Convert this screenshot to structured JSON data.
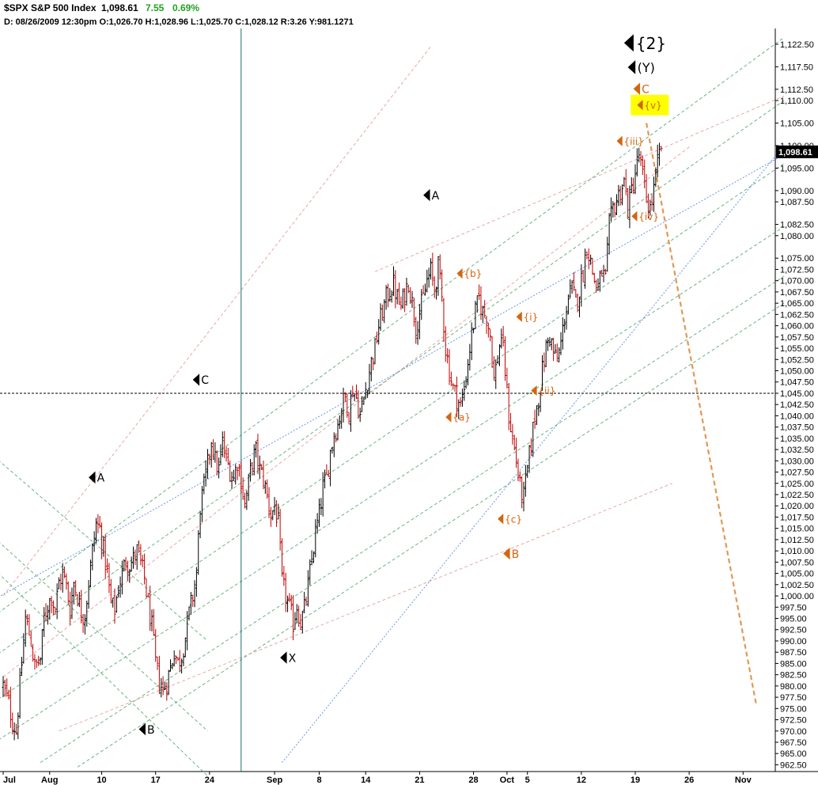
{
  "header": {
    "symbol": "$SPX S&P 500 Index",
    "last": "1,098.61",
    "change": "7.55",
    "change_pct": "0.69%",
    "ohlc_line": "D: 08/26/2009 12:30pm O:1,026.70 H:1,028.96 L:1,025.70 C:1,028.12 R:3.26 Y:981.1271"
  },
  "colors": {
    "background": "#ffffff",
    "up_bar": "#000000",
    "down_bar": "#c00000",
    "green_channel": "#3a9a5a",
    "pink_channel": "#e08a8a",
    "blue_line": "#3b6fe0",
    "orange_projection": "#e0934a",
    "label_orange": "#d4650f",
    "highlight": "#ffff00",
    "last_price_tag": "#000000",
    "vertical_marker": "#1a6e6e"
  },
  "chart_data": {
    "type": "ohlc",
    "title": "$SPX S&P 500 Index",
    "y_axis_position": "right",
    "ylim": [
      961,
      1126
    ],
    "grid": false,
    "y_ticks": [
      1122.5,
      1117.5,
      1112.5,
      1110.0,
      1105.0,
      1100.0,
      1095.0,
      1090.0,
      1087.5,
      1082.5,
      1080.0,
      1075.0,
      1072.5,
      1070.0,
      1067.5,
      1065.0,
      1062.5,
      1060.0,
      1057.5,
      1055.0,
      1052.5,
      1050.0,
      1047.5,
      1045.0,
      1042.5,
      1040.0,
      1037.5,
      1035.0,
      1032.5,
      1030.0,
      1027.5,
      1025.0,
      1022.5,
      1020.0,
      1017.5,
      1015.0,
      1012.5,
      1010.0,
      1007.5,
      1005.0,
      1002.5,
      1000.0,
      997.5,
      995.0,
      992.5,
      990.0,
      987.5,
      985.0,
      982.5,
      980.0,
      977.5,
      975.0,
      972.5,
      970.0,
      967.5,
      965.0,
      962.5
    ],
    "y_tick_labels": [
      "1,122.50",
      "1,117.50",
      "1,112.50",
      "1,110.00",
      "1,105.00",
      "1,100.00",
      "1,095.00",
      "1,090.00",
      "1,087.50",
      "1,082.50",
      "1,080.00",
      "1,075.00",
      "1,072.50",
      "1,070.00",
      "1,067.50",
      "1,065.00",
      "1,062.50",
      "1,060.00",
      "1,057.50",
      "1,055.00",
      "1,052.50",
      "1,050.00",
      "1,047.50",
      "1,045.00",
      "1,042.50",
      "1,040.00",
      "1,037.50",
      "1,035.00",
      "1,032.50",
      "1,030.00",
      "1,027.50",
      "1,025.00",
      "1,022.50",
      "1,020.00",
      "1,017.50",
      "1,015.00",
      "1,012.50",
      "1,010.00",
      "1,007.50",
      "1,005.00",
      "1,002.50",
      "1,000.00",
      "997.50",
      "995.00",
      "992.50",
      "990.00",
      "987.50",
      "985.00",
      "982.50",
      "980.00",
      "977.50",
      "975.00",
      "972.50",
      "970.00",
      "967.50",
      "965.00",
      "962.50"
    ],
    "x_ticks": [
      {
        "t": 0,
        "label": "Jul"
      },
      {
        "t": 25,
        "label": "Aug"
      },
      {
        "t": 53,
        "label": "10"
      },
      {
        "t": 82,
        "label": "17"
      },
      {
        "t": 111,
        "label": "24"
      },
      {
        "t": 146,
        "label": "Sep"
      },
      {
        "t": 170,
        "label": "8"
      },
      {
        "t": 195,
        "label": "14"
      },
      {
        "t": 224,
        "label": "21"
      },
      {
        "t": 253,
        "label": "28"
      },
      {
        "t": 271,
        "label": "Oct"
      },
      {
        "t": 282,
        "label": "5"
      },
      {
        "t": 311,
        "label": "12"
      },
      {
        "t": 340,
        "label": "19"
      },
      {
        "t": 369,
        "label": "26"
      },
      {
        "t": 398,
        "label": "Nov"
      }
    ],
    "last_price": 1098.61,
    "last_price_label": "1,098.61",
    "horizontal_line": 1045.0,
    "vertical_marker_t": 128,
    "price_path": [
      [
        0,
        980
      ],
      [
        3,
        976
      ],
      [
        5,
        972
      ],
      [
        7,
        970
      ],
      [
        10,
        985
      ],
      [
        12,
        995
      ],
      [
        15,
        990
      ],
      [
        17,
        984
      ],
      [
        20,
        986
      ],
      [
        22,
        995
      ],
      [
        24,
        998
      ],
      [
        26,
        1000
      ],
      [
        28,
        997
      ],
      [
        30,
        1003
      ],
      [
        32,
        1005
      ],
      [
        34,
        1002
      ],
      [
        36,
        997
      ],
      [
        38,
        1003
      ],
      [
        40,
        1000
      ],
      [
        42,
        996
      ],
      [
        44,
        996
      ],
      [
        46,
        1003
      ],
      [
        48,
        1010
      ],
      [
        50,
        1016
      ],
      [
        52,
        1015
      ],
      [
        54,
        1010
      ],
      [
        56,
        1005
      ],
      [
        58,
        998
      ],
      [
        60,
        997
      ],
      [
        62,
        1002
      ],
      [
        64,
        1005
      ],
      [
        66,
        1008
      ],
      [
        68,
        1007
      ],
      [
        70,
        1008
      ],
      [
        72,
        1010
      ],
      [
        74,
        1007
      ],
      [
        76,
        1004
      ],
      [
        78,
        998
      ],
      [
        80,
        993
      ],
      [
        82,
        985
      ],
      [
        84,
        981
      ],
      [
        86,
        979
      ],
      [
        88,
        981
      ],
      [
        90,
        984
      ],
      [
        92,
        988
      ],
      [
        94,
        985
      ],
      [
        96,
        987
      ],
      [
        98,
        991
      ],
      [
        100,
        996
      ],
      [
        102,
        1000
      ],
      [
        104,
        1005
      ],
      [
        106,
        1020
      ],
      [
        108,
        1024
      ],
      [
        110,
        1029
      ],
      [
        112,
        1035
      ],
      [
        114,
        1030
      ],
      [
        116,
        1028
      ],
      [
        118,
        1034
      ],
      [
        120,
        1030
      ],
      [
        122,
        1028
      ],
      [
        124,
        1026
      ],
      [
        126,
        1030
      ],
      [
        128,
        1026
      ],
      [
        130,
        1020
      ],
      [
        132,
        1025
      ],
      [
        134,
        1030
      ],
      [
        136,
        1032
      ],
      [
        138,
        1028
      ],
      [
        140,
        1026
      ],
      [
        142,
        1022
      ],
      [
        144,
        1018
      ],
      [
        146,
        1020
      ],
      [
        148,
        1016
      ],
      [
        150,
        1003
      ],
      [
        152,
        1000
      ],
      [
        154,
        997
      ],
      [
        156,
        994
      ],
      [
        158,
        998
      ],
      [
        160,
        994
      ],
      [
        162,
        997
      ],
      [
        164,
        1002
      ],
      [
        166,
        1008
      ],
      [
        168,
        1014
      ],
      [
        170,
        1018
      ],
      [
        172,
        1024
      ],
      [
        174,
        1026
      ],
      [
        176,
        1032
      ],
      [
        178,
        1036
      ],
      [
        180,
        1038
      ],
      [
        182,
        1042
      ],
      [
        184,
        1044
      ],
      [
        186,
        1041
      ],
      [
        188,
        1046
      ],
      [
        190,
        1044
      ],
      [
        192,
        1040
      ],
      [
        194,
        1044
      ],
      [
        196,
        1048
      ],
      [
        198,
        1052
      ],
      [
        200,
        1055
      ],
      [
        202,
        1060
      ],
      [
        204,
        1063
      ],
      [
        206,
        1066
      ],
      [
        208,
        1068
      ],
      [
        210,
        1069
      ],
      [
        212,
        1066
      ],
      [
        214,
        1064
      ],
      [
        216,
        1067
      ],
      [
        218,
        1070
      ],
      [
        220,
        1065
      ],
      [
        222,
        1060
      ],
      [
        224,
        1063
      ],
      [
        226,
        1066
      ],
      [
        228,
        1070
      ],
      [
        230,
        1072
      ],
      [
        232,
        1068
      ],
      [
        234,
        1073
      ],
      [
        236,
        1066
      ],
      [
        238,
        1055
      ],
      [
        240,
        1050
      ],
      [
        242,
        1046
      ],
      [
        244,
        1044
      ],
      [
        246,
        1042
      ],
      [
        248,
        1046
      ],
      [
        250,
        1052
      ],
      [
        252,
        1058
      ],
      [
        254,
        1063
      ],
      [
        256,
        1066
      ],
      [
        258,
        1063
      ],
      [
        260,
        1062
      ],
      [
        262,
        1058
      ],
      [
        264,
        1048
      ],
      [
        266,
        1053
      ],
      [
        268,
        1058
      ],
      [
        270,
        1050
      ],
      [
        272,
        1040
      ],
      [
        274,
        1035
      ],
      [
        276,
        1030
      ],
      [
        278,
        1024
      ],
      [
        280,
        1022
      ],
      [
        282,
        1028
      ],
      [
        284,
        1034
      ],
      [
        286,
        1040
      ],
      [
        288,
        1044
      ],
      [
        290,
        1050
      ],
      [
        292,
        1055
      ],
      [
        294,
        1058
      ],
      [
        296,
        1054
      ],
      [
        298,
        1052
      ],
      [
        300,
        1056
      ],
      [
        302,
        1062
      ],
      [
        304,
        1066
      ],
      [
        306,
        1068
      ],
      [
        308,
        1065
      ],
      [
        310,
        1068
      ],
      [
        312,
        1072
      ],
      [
        314,
        1078
      ],
      [
        316,
        1074
      ],
      [
        318,
        1070
      ],
      [
        320,
        1068
      ],
      [
        322,
        1072
      ],
      [
        324,
        1070
      ],
      [
        326,
        1082
      ],
      [
        328,
        1086
      ],
      [
        330,
        1088
      ],
      [
        332,
        1090
      ],
      [
        334,
        1092
      ],
      [
        336,
        1086
      ],
      [
        338,
        1090
      ],
      [
        340,
        1094
      ],
      [
        342,
        1098
      ],
      [
        344,
        1093
      ],
      [
        346,
        1088
      ],
      [
        348,
        1086
      ],
      [
        350,
        1090
      ],
      [
        352,
        1096
      ],
      [
        354,
        1100
      ]
    ],
    "channel_lines": [
      {
        "color": "green",
        "t1": -10,
        "p1": 994,
        "t2": 420,
        "p2": 1124
      },
      {
        "color": "green",
        "t1": -10,
        "p1": 985,
        "t2": 420,
        "p2": 1110
      },
      {
        "color": "green",
        "t1": -10,
        "p1": 975,
        "t2": 420,
        "p2": 1096
      },
      {
        "color": "green",
        "t1": -10,
        "p1": 966,
        "t2": 420,
        "p2": 1082
      },
      {
        "color": "green",
        "t1": 20,
        "p1": 963,
        "t2": 420,
        "p2": 1071
      },
      {
        "color": "green",
        "t1": 40,
        "p1": 962,
        "t2": 420,
        "p2": 1065
      },
      {
        "color": "green",
        "t1": -5,
        "p1": 1013,
        "t2": 110,
        "p2": 970
      },
      {
        "color": "green",
        "t1": -5,
        "p1": 1006,
        "t2": 110,
        "p2": 960
      },
      {
        "color": "green",
        "t1": -5,
        "p1": 1031,
        "t2": 110,
        "p2": 990
      },
      {
        "color": "pink",
        "t1": 0,
        "p1": 1000,
        "t2": 230,
        "p2": 1122
      },
      {
        "color": "pink",
        "t1": 0,
        "p1": 982,
        "t2": 370,
        "p2": 1100
      },
      {
        "color": "pink",
        "t1": 200,
        "p1": 1072,
        "t2": 420,
        "p2": 1111
      },
      {
        "color": "pink",
        "t1": 30,
        "p1": 970,
        "t2": 360,
        "p2": 1025
      },
      {
        "color": "blue",
        "t1": -10,
        "p1": 998,
        "t2": 420,
        "p2": 1098
      },
      {
        "color": "blue",
        "t1": 150,
        "p1": 963,
        "t2": 420,
        "p2": 1100
      },
      {
        "color": "orange",
        "t1": 346,
        "p1": 1105,
        "t2": 405,
        "p2": 976
      }
    ],
    "annotations": [
      {
        "text": "{2}",
        "t": 334,
        "p": 1122.8,
        "color": "black",
        "size": 20
      },
      {
        "text": "(Y)",
        "t": 336,
        "p": 1117.4,
        "color": "black",
        "size": 16
      },
      {
        "text": "C",
        "t": 339,
        "p": 1112.6,
        "color": "orange",
        "size": 14
      },
      {
        "text": "{v}",
        "t": 341,
        "p": 1109.0,
        "color": "orange",
        "size": 12,
        "highlight": true
      },
      {
        "text": "{iii}",
        "t": 330,
        "p": 1101.0,
        "color": "orange",
        "size": 12
      },
      {
        "text": "{iv}",
        "t": 338,
        "p": 1084.3,
        "color": "orange",
        "size": 12
      },
      {
        "text": "A",
        "t": 226,
        "p": 1089.0,
        "color": "black",
        "size": 14
      },
      {
        "text": "{b}",
        "t": 244,
        "p": 1071.6,
        "color": "orange",
        "size": 12
      },
      {
        "text": "{i}",
        "t": 276,
        "p": 1062.0,
        "color": "orange",
        "size": 12
      },
      {
        "text": "{ii}",
        "t": 284,
        "p": 1045.6,
        "color": "orange",
        "size": 12
      },
      {
        "text": "{a}",
        "t": 238,
        "p": 1039.7,
        "color": "orange",
        "size": 12
      },
      {
        "text": "{c}",
        "t": 266,
        "p": 1017.1,
        "color": "orange",
        "size": 12
      },
      {
        "text": "B",
        "t": 269,
        "p": 1009.4,
        "color": "orange",
        "size": 14
      },
      {
        "text": "C",
        "t": 102,
        "p": 1048.0,
        "color": "black",
        "size": 14
      },
      {
        "text": "A",
        "t": 46,
        "p": 1026.3,
        "color": "black",
        "size": 14
      },
      {
        "text": "X",
        "t": 149,
        "p": 986.3,
        "color": "black",
        "size": 14
      },
      {
        "text": "B",
        "t": 73,
        "p": 970.4,
        "color": "black",
        "size": 14
      }
    ]
  }
}
